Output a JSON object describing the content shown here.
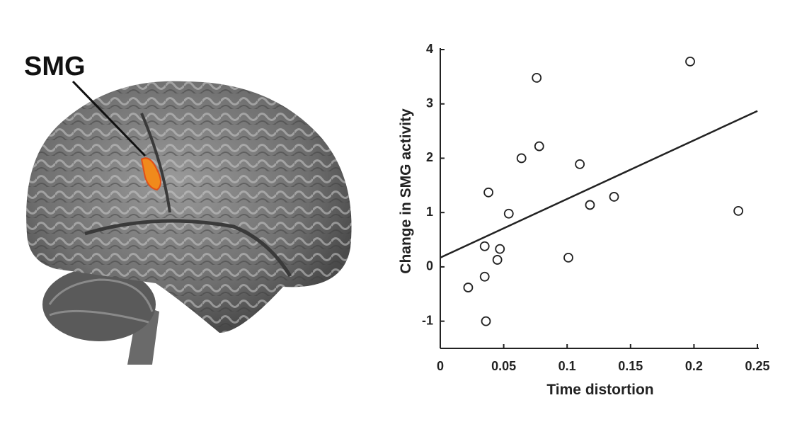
{
  "brain_label": "SMG",
  "chart_data": {
    "type": "scatter",
    "x_label": "Time distortion",
    "y_label": "Change in SMG activity",
    "x": [
      0.022,
      0.035,
      0.036,
      0.035,
      0.045,
      0.047,
      0.038,
      0.054,
      0.064,
      0.078,
      0.076,
      0.11,
      0.118,
      0.137,
      0.101,
      0.197,
      0.235
    ],
    "values": [
      -0.38,
      -0.18,
      -1.0,
      0.38,
      0.13,
      0.33,
      1.37,
      0.98,
      2.0,
      2.22,
      3.48,
      1.89,
      1.14,
      1.29,
      0.17,
      3.78,
      1.03
    ],
    "trend_line": {
      "x": [
        0,
        0.25
      ],
      "y": [
        0.17,
        2.87
      ]
    },
    "xlim": [
      0,
      0.25
    ],
    "xticks": [
      0,
      0.05,
      0.1,
      0.15,
      0.2,
      0.25
    ],
    "ylim": [
      -1.5,
      4
    ],
    "yticks": [
      -1,
      0,
      1,
      2,
      3,
      4
    ],
    "color": "#222222"
  }
}
